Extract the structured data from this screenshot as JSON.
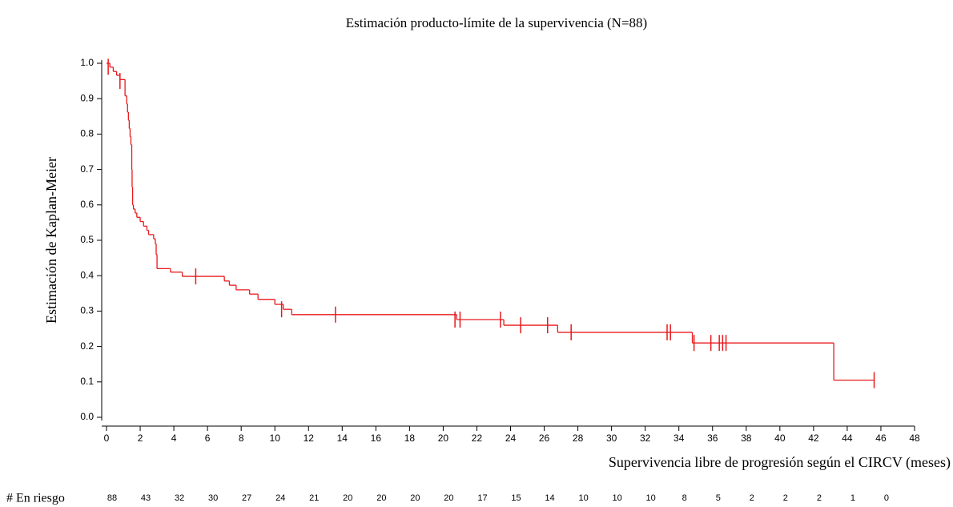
{
  "chart_data": {
    "type": "km",
    "title": "Estimación producto-límite de la supervivencia (N=88)",
    "x_label": "Supervivencia libre de progresión según el CIRCV (meses)",
    "y_label": "Estimación de Kaplan-Meier",
    "color": "#e8191c",
    "xlim": [
      0,
      48
    ],
    "xticks": [
      0,
      2,
      4,
      6,
      8,
      10,
      12,
      14,
      16,
      18,
      20,
      22,
      24,
      26,
      28,
      30,
      32,
      34,
      36,
      38,
      40,
      42,
      44,
      46,
      48
    ],
    "ylim": [
      0,
      1
    ],
    "yticks": [
      {
        "value": 0,
        "label": "0.0"
      },
      0.1,
      0.2,
      0.3,
      0.4,
      0.5,
      0.6,
      0.7,
      0.8,
      0.9,
      {
        "value": 1,
        "label": "1.0"
      }
    ],
    "time": [
      0,
      0.2,
      0.4,
      0.6,
      0.8,
      1.1,
      1.2,
      1.25,
      1.3,
      1.35,
      1.4,
      1.45,
      1.5,
      1.52,
      1.55,
      1.6,
      1.7,
      1.8,
      2.0,
      2.2,
      2.4,
      2.5,
      2.8,
      2.9,
      2.95,
      3.0,
      3.8,
      4.5,
      7.0,
      7.3,
      7.7,
      8.5,
      9.0,
      10.0,
      10.5,
      11.0,
      20.8,
      23.6,
      26.8,
      34.8,
      43.2
    ],
    "survival": [
      1.0,
      0.989,
      0.977,
      0.966,
      0.954,
      0.908,
      0.885,
      0.862,
      0.839,
      0.816,
      0.793,
      0.77,
      0.7,
      0.65,
      0.6,
      0.588,
      0.577,
      0.565,
      0.553,
      0.54,
      0.528,
      0.516,
      0.504,
      0.49,
      0.46,
      0.42,
      0.41,
      0.398,
      0.385,
      0.373,
      0.36,
      0.348,
      0.333,
      0.319,
      0.305,
      0.29,
      0.276,
      0.26,
      0.24,
      0.21,
      0.105
    ],
    "censored_time": [
      0.1,
      0.8,
      5.3,
      10.4,
      13.6,
      20.7,
      21.0,
      23.4,
      24.6,
      26.2,
      27.6,
      33.3,
      33.5,
      34.9,
      35.9,
      36.4,
      36.6,
      36.8,
      45.6
    ],
    "censored_survival": [
      0.99,
      0.95,
      0.398,
      0.305,
      0.29,
      0.276,
      0.276,
      0.276,
      0.26,
      0.26,
      0.24,
      0.24,
      0.24,
      0.21,
      0.21,
      0.21,
      0.21,
      0.21,
      0.105
    ],
    "at_risk_label": "# En riesgo",
    "at_risk": [
      88,
      43,
      32,
      30,
      27,
      24,
      21,
      20,
      20,
      20,
      20,
      17,
      15,
      14,
      10,
      10,
      10,
      8,
      5,
      2,
      2,
      2,
      1,
      0
    ]
  }
}
